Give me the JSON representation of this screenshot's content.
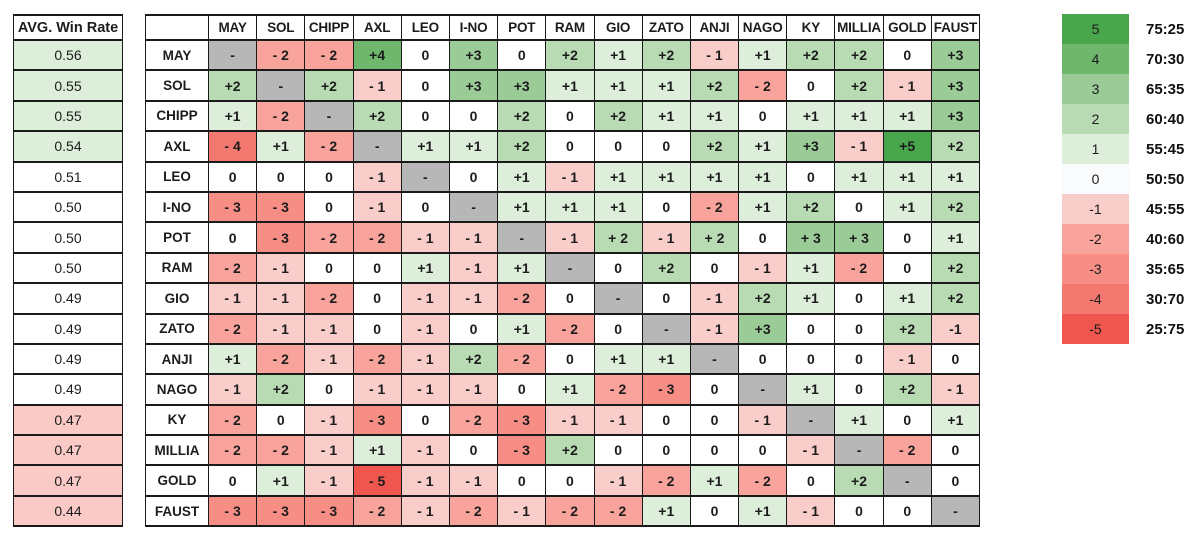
{
  "avg_table": {
    "header": "AVG. Win Rate",
    "rows": [
      {
        "character": "MAY",
        "value": "0.56",
        "tone": "positive"
      },
      {
        "character": "SOL",
        "value": "0.55",
        "tone": "positive"
      },
      {
        "character": "CHIPP",
        "value": "0.55",
        "tone": "positive"
      },
      {
        "character": "AXL",
        "value": "0.54",
        "tone": "positive"
      },
      {
        "character": "LEO",
        "value": "0.51",
        "tone": "neutral"
      },
      {
        "character": "I-NO",
        "value": "0.50",
        "tone": "neutral"
      },
      {
        "character": "POT",
        "value": "0.50",
        "tone": "neutral"
      },
      {
        "character": "RAM",
        "value": "0.50",
        "tone": "neutral"
      },
      {
        "character": "GIO",
        "value": "0.49",
        "tone": "neutral"
      },
      {
        "character": "ZATO",
        "value": "0.49",
        "tone": "neutral"
      },
      {
        "character": "ANJI",
        "value": "0.49",
        "tone": "neutral"
      },
      {
        "character": "NAGO",
        "value": "0.49",
        "tone": "neutral"
      },
      {
        "character": "KY",
        "value": "0.47",
        "tone": "negative"
      },
      {
        "character": "MILLIA",
        "value": "0.47",
        "tone": "negative"
      },
      {
        "character": "GOLD",
        "value": "0.47",
        "tone": "negative"
      },
      {
        "character": "FAUST",
        "value": "0.44",
        "tone": "negative"
      }
    ]
  },
  "matrix": {
    "diagonal_symbol": "-",
    "columns": [
      "MAY",
      "SOL",
      "CHIPP",
      "AXL",
      "LEO",
      "I-NO",
      "POT",
      "RAM",
      "GIO",
      "ZATO",
      "ANJI",
      "NAGO",
      "KY",
      "MILLIA",
      "GOLD",
      "FAUST"
    ],
    "rows": [
      {
        "name": "MAY",
        "cells": [
          "-",
          "- 2",
          "- 2",
          "+4",
          "0",
          "+3",
          "0",
          "+2",
          "+1",
          "+2",
          "- 1",
          "+1",
          "+2",
          "+2",
          "0",
          "+3"
        ]
      },
      {
        "name": "SOL",
        "cells": [
          "+2",
          "-",
          "+2",
          "- 1",
          "0",
          "+3",
          "+3",
          "+1",
          "+1",
          "+1",
          "+2",
          "- 2",
          "0",
          "+2",
          "- 1",
          "+3"
        ]
      },
      {
        "name": "CHIPP",
        "cells": [
          "+1",
          "- 2",
          "-",
          "+2",
          "0",
          "0",
          "+2",
          "0",
          "+2",
          "+1",
          "+1",
          "0",
          "+1",
          "+1",
          "+1",
          "+3"
        ]
      },
      {
        "name": "AXL",
        "cells": [
          "- 4",
          "+1",
          "- 2",
          "-",
          "+1",
          "+1",
          "+2",
          "0",
          "0",
          "0",
          "+2",
          "+1",
          "+3",
          "- 1",
          "+5",
          "+2"
        ]
      },
      {
        "name": "LEO",
        "cells": [
          "0",
          "0",
          "0",
          "- 1",
          "-",
          "0",
          "+1",
          "- 1",
          "+1",
          "+1",
          "+1",
          "+1",
          "0",
          "+1",
          "+1",
          "+1"
        ]
      },
      {
        "name": "I-NO",
        "cells": [
          "- 3",
          "- 3",
          "0",
          "- 1",
          "0",
          "-",
          "+1",
          "+1",
          "+1",
          "0",
          "- 2",
          "+1",
          "+2",
          "0",
          "+1",
          "+2"
        ]
      },
      {
        "name": "POT",
        "cells": [
          "0",
          "- 3",
          "- 2",
          "- 2",
          "- 1",
          "- 1",
          "-",
          "- 1",
          "+ 2",
          "- 1",
          "+ 2",
          "0",
          "+ 3",
          "+ 3",
          "0",
          "+1"
        ]
      },
      {
        "name": "RAM",
        "cells": [
          "- 2",
          "- 1",
          "0",
          "0",
          "+1",
          "- 1",
          "+1",
          "-",
          "0",
          "+2",
          "0",
          "- 1",
          "+1",
          "- 2",
          "0",
          "+2"
        ]
      },
      {
        "name": "GIO",
        "cells": [
          "- 1",
          "- 1",
          "- 2",
          "0",
          "- 1",
          "- 1",
          "- 2",
          "0",
          "-",
          "0",
          "- 1",
          "+2",
          "+1",
          "0",
          "+1",
          "+2"
        ]
      },
      {
        "name": "ZATO",
        "cells": [
          "- 2",
          "- 1",
          "- 1",
          "0",
          "- 1",
          "0",
          "+1",
          "- 2",
          "0",
          "-",
          "- 1",
          "+3",
          "0",
          "0",
          "+2",
          "-1"
        ]
      },
      {
        "name": "ANJI",
        "cells": [
          "+1",
          "- 2",
          "- 1",
          "- 2",
          "- 1",
          "+2",
          "- 2",
          "0",
          "+1",
          "+1",
          "-",
          "0",
          "0",
          "0",
          "- 1",
          "0"
        ]
      },
      {
        "name": "NAGO",
        "cells": [
          "- 1",
          "+2",
          "0",
          "- 1",
          "- 1",
          "- 1",
          "0",
          "+1",
          "- 2",
          "- 3",
          "0",
          "-",
          "+1",
          "0",
          "+2",
          "- 1"
        ]
      },
      {
        "name": "KY",
        "cells": [
          "- 2",
          "0",
          "- 1",
          "- 3",
          "0",
          "- 2",
          "- 3",
          "- 1",
          "- 1",
          "0",
          "0",
          "- 1",
          "-",
          "+1",
          "0",
          "+1"
        ]
      },
      {
        "name": "MILLIA",
        "cells": [
          "- 2",
          "- 2",
          "- 1",
          "+1",
          "- 1",
          "0",
          "- 3",
          "+2",
          "0",
          "0",
          "0",
          "0",
          "- 1",
          "-",
          "- 2",
          "0"
        ]
      },
      {
        "name": "GOLD",
        "cells": [
          "0",
          "+1",
          "- 1",
          "- 5",
          "- 1",
          "- 1",
          "0",
          "0",
          "- 1",
          "- 2",
          "+1",
          "- 2",
          "0",
          "+2",
          "-",
          "0"
        ]
      },
      {
        "name": "FAUST",
        "cells": [
          "- 3",
          "- 3",
          "- 3",
          "- 2",
          "- 1",
          "- 2",
          "- 1",
          "- 2",
          "- 2",
          "+1",
          "0",
          "+1",
          "- 1",
          "0",
          "0",
          "-"
        ]
      }
    ]
  },
  "legend": {
    "entries": [
      {
        "value": "5",
        "ratio": "75:25"
      },
      {
        "value": "4",
        "ratio": "70:30"
      },
      {
        "value": "3",
        "ratio": "65:35"
      },
      {
        "value": "2",
        "ratio": "60:40"
      },
      {
        "value": "1",
        "ratio": "55:45"
      },
      {
        "value": "0",
        "ratio": "50:50"
      },
      {
        "value": "-1",
        "ratio": "45:55"
      },
      {
        "value": "-2",
        "ratio": "40:60"
      },
      {
        "value": "-3",
        "ratio": "35:65"
      },
      {
        "value": "-4",
        "ratio": "30:70"
      },
      {
        "value": "-5",
        "ratio": "25:75"
      }
    ]
  },
  "colors": {
    "grid_border": "#1a1a1a",
    "diagonal": "#b7b7b7",
    "scale": {
      "5": "#4aa64d",
      "4": "#6eb76d",
      "3": "#9bcc97",
      "2": "#b9dbb4",
      "1": "#ddeeda",
      "0": "#ffffff",
      "-1": "#f9cdc9",
      "-2": "#f8a39c",
      "-3": "#f68e86",
      "-4": "#f37970",
      "-5": "#ef574e"
    },
    "legend_zero": "#fafbfd",
    "avg_positive": "#ddeeda",
    "avg_negative": "#f9cac6",
    "text": "#1c1c1c"
  },
  "chart_data": {
    "type": "heatmap",
    "title": "Character matchup chart with average win rates",
    "x_categories": [
      "MAY",
      "SOL",
      "CHIPP",
      "AXL",
      "LEO",
      "I-NO",
      "POT",
      "RAM",
      "GIO",
      "ZATO",
      "ANJI",
      "NAGO",
      "KY",
      "MILLIA",
      "GOLD",
      "FAUST"
    ],
    "y_categories": [
      "MAY",
      "SOL",
      "CHIPP",
      "AXL",
      "LEO",
      "I-NO",
      "POT",
      "RAM",
      "GIO",
      "ZATO",
      "ANJI",
      "NAGO",
      "KY",
      "MILLIA",
      "GOLD",
      "FAUST"
    ],
    "values": [
      [
        null,
        -2,
        -2,
        4,
        0,
        3,
        0,
        2,
        1,
        2,
        -1,
        1,
        2,
        2,
        0,
        3
      ],
      [
        2,
        null,
        2,
        -1,
        0,
        3,
        3,
        1,
        1,
        1,
        2,
        -2,
        0,
        2,
        -1,
        3
      ],
      [
        1,
        -2,
        null,
        2,
        0,
        0,
        2,
        0,
        2,
        1,
        1,
        0,
        1,
        1,
        1,
        3
      ],
      [
        -4,
        1,
        -2,
        null,
        1,
        1,
        2,
        0,
        0,
        0,
        2,
        1,
        3,
        -1,
        5,
        2
      ],
      [
        0,
        0,
        0,
        -1,
        null,
        0,
        1,
        -1,
        1,
        1,
        1,
        1,
        0,
        1,
        1,
        1
      ],
      [
        -3,
        -3,
        0,
        -1,
        0,
        null,
        1,
        1,
        1,
        0,
        -2,
        1,
        2,
        0,
        1,
        2
      ],
      [
        0,
        -3,
        -2,
        -2,
        -1,
        -1,
        null,
        -1,
        2,
        -1,
        2,
        0,
        3,
        3,
        0,
        1
      ],
      [
        -2,
        -1,
        0,
        0,
        1,
        -1,
        1,
        null,
        0,
        2,
        0,
        -1,
        1,
        -2,
        0,
        2
      ],
      [
        -1,
        -1,
        -2,
        0,
        -1,
        -1,
        -2,
        0,
        null,
        0,
        -1,
        2,
        1,
        0,
        1,
        2
      ],
      [
        -2,
        -1,
        -1,
        0,
        -1,
        0,
        1,
        -2,
        0,
        null,
        -1,
        3,
        0,
        0,
        2,
        -1
      ],
      [
        1,
        -2,
        -1,
        -2,
        -1,
        2,
        -2,
        0,
        1,
        1,
        null,
        0,
        0,
        0,
        -1,
        0
      ],
      [
        -1,
        2,
        0,
        -1,
        -1,
        -1,
        0,
        1,
        -2,
        -3,
        0,
        null,
        1,
        0,
        2,
        -1
      ],
      [
        -2,
        0,
        -1,
        -3,
        0,
        -2,
        -3,
        -1,
        -1,
        0,
        0,
        -1,
        null,
        1,
        0,
        1
      ],
      [
        -2,
        -2,
        -1,
        1,
        -1,
        0,
        -3,
        2,
        0,
        0,
        0,
        0,
        -1,
        null,
        -2,
        0
      ],
      [
        0,
        1,
        -1,
        -5,
        -1,
        -1,
        0,
        0,
        -1,
        -2,
        1,
        -2,
        0,
        2,
        null,
        0
      ],
      [
        -3,
        -3,
        -3,
        -2,
        -1,
        -2,
        -1,
        -2,
        -2,
        1,
        0,
        1,
        -1,
        0,
        0,
        null
      ]
    ],
    "avg_win_rate": {
      "label": "AVG. Win Rate",
      "values": [
        0.56,
        0.55,
        0.55,
        0.54,
        0.51,
        0.5,
        0.5,
        0.5,
        0.49,
        0.49,
        0.49,
        0.49,
        0.47,
        0.47,
        0.47,
        0.44
      ]
    },
    "value_range": [
      -5,
      5
    ],
    "legend_position": "right",
    "legend_scale": {
      "5": "75:25",
      "4": "70:30",
      "3": "65:35",
      "2": "60:40",
      "1": "55:45",
      "0": "50:50",
      "-1": "45:55",
      "-2": "40:60",
      "-3": "35:65",
      "-4": "30:70",
      "-5": "25:75"
    }
  }
}
